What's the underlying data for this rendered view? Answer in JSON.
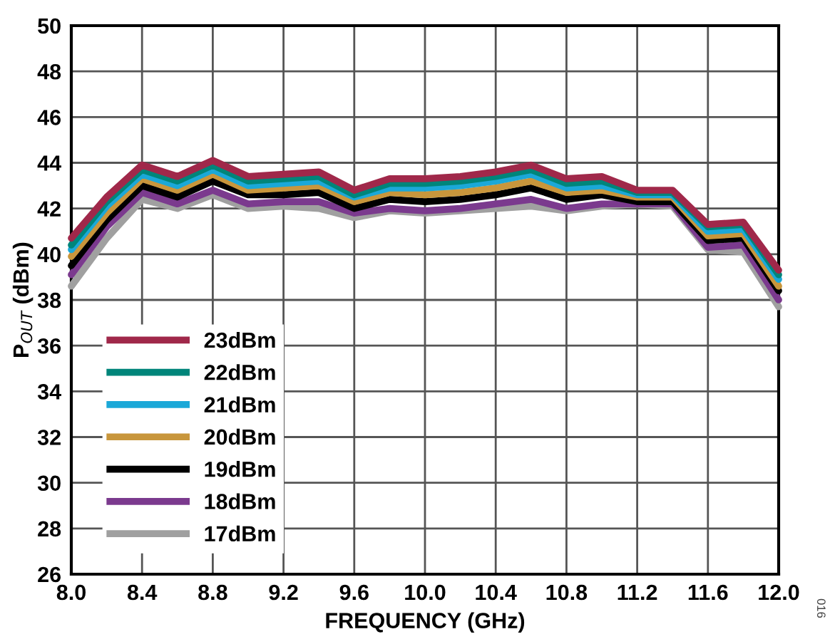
{
  "chart_data": {
    "type": "line",
    "xlabel": "FREQUENCY (GHz)",
    "ylabel": "P$_{OUT}$ (dBm)",
    "x": [
      8.0,
      8.2,
      8.4,
      8.6,
      8.8,
      9.0,
      9.2,
      9.4,
      9.6,
      9.8,
      10.0,
      10.2,
      10.4,
      10.6,
      10.8,
      11.0,
      11.2,
      11.4,
      11.6,
      11.8,
      12.0
    ],
    "xlim": [
      8.0,
      12.0
    ],
    "xticks": [
      {
        "value": 8.0,
        "label": "8.0"
      },
      {
        "value": 8.4,
        "label": "8.4"
      },
      {
        "value": 8.8,
        "label": "8.8"
      },
      {
        "value": 9.2,
        "label": "9.2"
      },
      {
        "value": 9.6,
        "label": "9.6"
      },
      {
        "value": 10.0,
        "label": "10.0"
      },
      {
        "value": 10.4,
        "label": "10.4"
      },
      {
        "value": 10.8,
        "label": "10.8"
      },
      {
        "value": 11.2,
        "label": "11.2"
      },
      {
        "value": 11.6,
        "label": "11.6"
      },
      {
        "value": 12.0,
        "label": "12.0"
      }
    ],
    "ylim": [
      26,
      50
    ],
    "yticks": [
      26,
      28,
      30,
      32,
      34,
      36,
      38,
      40,
      42,
      44,
      46,
      48,
      50
    ],
    "grid": true,
    "legend": "bottom left",
    "line_style": "solid",
    "marker": "none",
    "annotations": [
      "016"
    ],
    "series": [
      {
        "name": "23dBm",
        "color": "#a0284a",
        "values": [
          40.7,
          42.5,
          43.9,
          43.4,
          44.1,
          43.4,
          43.5,
          43.6,
          42.8,
          43.3,
          43.3,
          43.4,
          43.6,
          43.9,
          43.3,
          43.4,
          42.8,
          42.8,
          41.3,
          41.4,
          39.3
        ]
      },
      {
        "name": "22dBm",
        "color": "#00857a",
        "values": [
          40.4,
          42.3,
          43.7,
          43.2,
          43.9,
          43.2,
          43.3,
          43.4,
          42.6,
          43.1,
          43.1,
          43.2,
          43.4,
          43.7,
          43.1,
          43.2,
          42.7,
          42.7,
          41.2,
          41.3,
          39.1
        ]
      },
      {
        "name": "21dBm",
        "color": "#1ba8d8",
        "values": [
          40.2,
          42.1,
          43.5,
          43.0,
          43.7,
          43.0,
          43.1,
          43.2,
          42.5,
          42.9,
          42.9,
          43.0,
          43.2,
          43.5,
          42.9,
          43.0,
          42.6,
          42.6,
          41.0,
          41.1,
          38.9
        ]
      },
      {
        "name": "20dBm",
        "color": "#c8963c",
        "values": [
          39.9,
          41.8,
          43.3,
          42.8,
          43.5,
          42.8,
          42.9,
          43.0,
          42.3,
          42.7,
          42.6,
          42.7,
          42.9,
          43.2,
          42.7,
          42.8,
          42.5,
          42.5,
          40.8,
          40.9,
          38.6
        ]
      },
      {
        "name": "19dBm",
        "color": "#000000",
        "values": [
          39.5,
          41.5,
          43.0,
          42.5,
          43.2,
          42.6,
          42.6,
          42.7,
          42.0,
          42.4,
          42.3,
          42.4,
          42.6,
          42.9,
          42.4,
          42.6,
          42.3,
          42.3,
          40.6,
          40.7,
          38.4
        ]
      },
      {
        "name": "18dBm",
        "color": "#7b3a8e",
        "values": [
          39.1,
          41.2,
          42.7,
          42.2,
          42.8,
          42.2,
          42.3,
          42.3,
          41.8,
          42.0,
          41.9,
          42.0,
          42.2,
          42.4,
          42.0,
          42.2,
          42.2,
          42.2,
          40.3,
          40.4,
          38.0
        ]
      },
      {
        "name": "17dBm",
        "color": "#a0a0a0",
        "values": [
          38.6,
          40.7,
          42.4,
          42.0,
          42.6,
          42.0,
          42.1,
          42.0,
          41.6,
          41.9,
          41.8,
          41.9,
          42.0,
          42.1,
          41.9,
          42.1,
          42.2,
          42.1,
          40.2,
          40.1,
          37.7
        ]
      }
    ]
  }
}
